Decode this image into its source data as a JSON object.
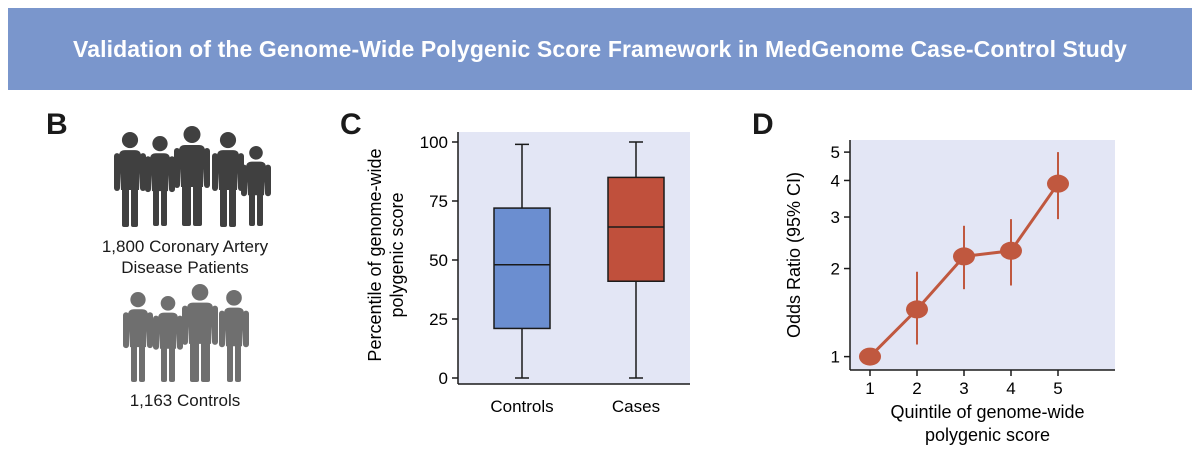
{
  "banner": {
    "title": "Validation of the Genome-Wide Polygenic Score Framework in MedGenome Case-Control Study"
  },
  "panels": {
    "b": {
      "letter": "B",
      "cases_caption_line1": "1,800 Coronary Artery",
      "cases_caption_line2": "Disease Patients",
      "controls_caption": "1,163 Controls"
    },
    "c": {
      "letter": "C"
    },
    "d": {
      "letter": "D"
    }
  },
  "colors": {
    "banner": "#7a96cc",
    "plot_bg": "#e3e6f5",
    "controls_box": "#6b8ed0",
    "cases_box": "#c0503c",
    "or_line": "#c0583f",
    "people_dark": "#404040",
    "people_light": "#6f6f6f"
  },
  "icons": {
    "cases_group": "people-silhouette-icon",
    "controls_group": "people-silhouette-icon"
  },
  "chart_data": [
    {
      "type": "box",
      "panel": "C",
      "ylabel_line1": "Percentile of genome-wide",
      "ylabel_line2": "polygenic score",
      "xlabel": "",
      "ylim": [
        0,
        100
      ],
      "yticks": [
        0,
        25,
        50,
        75,
        100
      ],
      "categories": [
        "Controls",
        "Cases"
      ],
      "boxes": [
        {
          "name": "Controls",
          "min": 0,
          "q1": 21,
          "median": 48,
          "q3": 72,
          "max": 99
        },
        {
          "name": "Cases",
          "min": 0,
          "q1": 41,
          "median": 64,
          "q3": 85,
          "max": 100
        }
      ],
      "grid": false
    },
    {
      "type": "line",
      "panel": "D",
      "xlabel_line1": "Quintile of genome-wide",
      "xlabel_line2": "polygenic score",
      "ylabel": "Odds Ratio (95% CI)",
      "yscale": "log",
      "ylim": [
        0.9,
        5.5
      ],
      "yticks": [
        1,
        2,
        3,
        4,
        5
      ],
      "x": [
        1,
        2,
        3,
        4,
        5
      ],
      "series": [
        {
          "values": [
            1.0,
            1.45,
            2.2,
            2.3,
            3.9
          ],
          "ci_low": [
            1.0,
            1.1,
            1.7,
            1.75,
            2.95
          ],
          "ci_high": [
            1.0,
            1.95,
            2.8,
            2.95,
            5.0
          ]
        }
      ],
      "grid": false
    }
  ]
}
